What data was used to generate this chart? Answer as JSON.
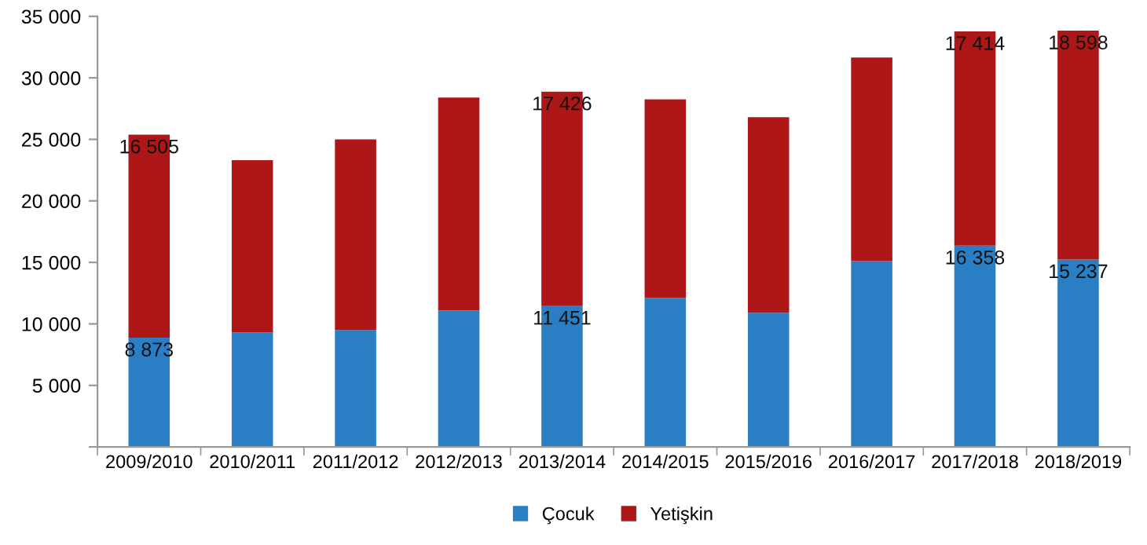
{
  "chart_data": {
    "type": "bar",
    "stacked": true,
    "categories": [
      "2009/2010",
      "2010/2011",
      "2011/2012",
      "2012/2013",
      "2013/2014",
      "2014/2015",
      "2015/2016",
      "2016/2017",
      "2017/2018",
      "2018/2019"
    ],
    "series": [
      {
        "name": "Çocuk",
        "color": "#2a7fc4",
        "values": [
          8873,
          9300,
          9500,
          11100,
          11451,
          12100,
          10900,
          15100,
          16358,
          15237
        ],
        "value_labels": [
          "8 873",
          null,
          null,
          null,
          "11 451",
          null,
          null,
          null,
          "16 358",
          "15 237"
        ]
      },
      {
        "name": "Yetişkin",
        "color": "#ad1717",
        "values": [
          16505,
          14000,
          15500,
          17300,
          17426,
          16150,
          15900,
          16550,
          17414,
          18598
        ],
        "value_labels": [
          "16 505",
          null,
          null,
          null,
          "17 426",
          null,
          null,
          null,
          "17 414",
          "18 598"
        ]
      }
    ],
    "ylim": [
      0,
      35000
    ],
    "yticks": [
      {
        "value": 0,
        "label": null
      },
      {
        "value": 5000,
        "label": "5 000"
      },
      {
        "value": 10000,
        "label": "10 000"
      },
      {
        "value": 15000,
        "label": "15 000"
      },
      {
        "value": 20000,
        "label": "20 000"
      },
      {
        "value": 25000,
        "label": "25 000"
      },
      {
        "value": 30000,
        "label": "30 000"
      },
      {
        "value": 35000,
        "label": "35 000"
      }
    ],
    "grid": false,
    "legend": "bottom"
  }
}
